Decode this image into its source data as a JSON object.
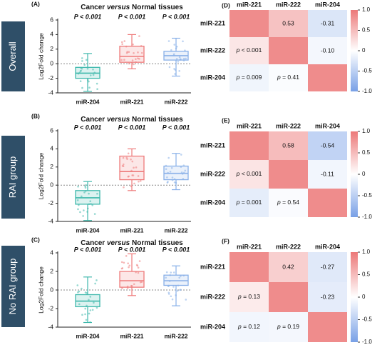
{
  "figure": {
    "colors": {
      "teal": "#3FB8AC",
      "red": "#EE7B7B",
      "blue": "#89B0E8",
      "label_bg": "#2F4F68",
      "grid": "#999999"
    },
    "row_labels": [
      "Overall",
      "RAI group",
      "No RAI group"
    ],
    "box_title_pre": "Cancer ",
    "box_title_it": "versus",
    "box_title_post": " Normal tissues",
    "ylabel": "Log2Fold change",
    "cbar_ticks": [
      "1.0",
      "0.5",
      "0",
      "-0.5",
      "-1.0"
    ]
  },
  "chart_data": [
    {
      "type": "box",
      "panel": "A",
      "title": "Cancer versus Normal tissues",
      "ylabel": "Log2Fold change",
      "ylim": [
        -4,
        6
      ],
      "yticks": [
        -4,
        -2,
        0,
        2,
        4,
        6
      ],
      "categories": [
        "miR-204",
        "miR-221",
        "miR-222"
      ],
      "colors": [
        "#3FB8AC",
        "#EE7B7B",
        "#89B0E8"
      ],
      "pvalues": [
        "P < 0.001",
        "P < 0.001",
        "P < 0.001"
      ],
      "boxes": [
        {
          "min": -3.8,
          "q1": -2.0,
          "median": -1.3,
          "q3": -0.5,
          "max": 1.4
        },
        {
          "min": -0.7,
          "q1": 0.2,
          "median": 1.0,
          "q3": 2.4,
          "max": 4.0
        },
        {
          "min": -1.7,
          "q1": 0.5,
          "median": 1.1,
          "q3": 1.7,
          "max": 3.5
        }
      ]
    },
    {
      "type": "box",
      "panel": "B",
      "title": "Cancer versus Normal tissues",
      "ylabel": "Log2Fold change",
      "ylim": [
        -4,
        6
      ],
      "yticks": [
        -4,
        -2,
        0,
        2,
        4,
        6
      ],
      "categories": [
        "miR-204",
        "miR-221",
        "miR-222"
      ],
      "colors": [
        "#3FB8AC",
        "#EE7B7B",
        "#89B0E8"
      ],
      "pvalues": [
        "P < 0.001",
        "P < 0.001",
        "P < 0.001"
      ],
      "boxes": [
        {
          "min": -3.9,
          "q1": -2.1,
          "median": -1.4,
          "q3": -0.6,
          "max": 0.4
        },
        {
          "min": -0.6,
          "q1": 0.6,
          "median": 1.5,
          "q3": 3.2,
          "max": 4.0
        },
        {
          "min": -0.5,
          "q1": 0.6,
          "median": 1.3,
          "q3": 2.1,
          "max": 3.5
        }
      ]
    },
    {
      "type": "box",
      "panel": "C",
      "title": "Cancer versus Normal tissues",
      "ylabel": "Log2Fold change",
      "ylim": [
        -4,
        4
      ],
      "yticks": [
        -4,
        -2,
        0,
        2,
        4
      ],
      "categories": [
        "miR-204",
        "miR-221",
        "miR-222"
      ],
      "colors": [
        "#3FB8AC",
        "#EE7B7B",
        "#89B0E8"
      ],
      "pvalues": [
        "P < 0.001",
        "P < 0.001",
        "P < 0.001"
      ],
      "boxes": [
        {
          "min": -3.5,
          "q1": -1.8,
          "median": -1.2,
          "q3": -0.5,
          "max": 1.4
        },
        {
          "min": -0.6,
          "q1": 0.3,
          "median": 1.0,
          "q3": 2.0,
          "max": 3.9
        },
        {
          "min": -1.7,
          "q1": 0.5,
          "median": 1.0,
          "q3": 1.6,
          "max": 2.6
        }
      ]
    },
    {
      "type": "heatmap",
      "panel": "D",
      "labels": [
        "miR-221",
        "miR-222",
        "miR-204"
      ],
      "values": [
        [
          1,
          0.53,
          -0.31
        ],
        [
          0.53,
          1,
          -0.1
        ],
        [
          -0.31,
          -0.1,
          1
        ]
      ],
      "upper": [
        [
          null,
          "0.53",
          "-0.31"
        ],
        [
          null,
          null,
          "-0.10"
        ],
        [
          null,
          null,
          null
        ]
      ],
      "lower": [
        [
          null,
          null,
          null
        ],
        [
          "p < 0.001",
          null,
          null
        ],
        [
          "p = 0.009",
          "p = 0.41",
          null
        ]
      ],
      "colorbar": [
        -1,
        1
      ]
    },
    {
      "type": "heatmap",
      "panel": "E",
      "labels": [
        "miR-221",
        "miR-222",
        "miR-204"
      ],
      "values": [
        [
          1,
          0.58,
          -0.54
        ],
        [
          0.58,
          1,
          -0.11
        ],
        [
          -0.54,
          -0.11,
          1
        ]
      ],
      "upper": [
        [
          null,
          "0.58",
          "-0.54"
        ],
        [
          null,
          null,
          "-0.11"
        ],
        [
          null,
          null,
          null
        ]
      ],
      "lower": [
        [
          null,
          null,
          null
        ],
        [
          "p < 0.001",
          null,
          null
        ],
        [
          "p = 0.001",
          "p = 0.54",
          null
        ]
      ],
      "colorbar": [
        -1,
        1
      ]
    },
    {
      "type": "heatmap",
      "panel": "F",
      "labels": [
        "miR-221",
        "miR-222",
        "miR-204"
      ],
      "values": [
        [
          1,
          0.42,
          -0.27
        ],
        [
          0.42,
          1,
          -0.23
        ],
        [
          -0.27,
          -0.23,
          1
        ]
      ],
      "upper": [
        [
          null,
          "0.42",
          "-0.27"
        ],
        [
          null,
          null,
          "-0.23"
        ],
        [
          null,
          null,
          null
        ]
      ],
      "lower": [
        [
          null,
          null,
          null
        ],
        [
          "p = 0.13",
          null,
          null
        ],
        [
          "p = 0.12",
          "p = 0.19",
          null
        ]
      ],
      "colorbar": [
        -1,
        1
      ]
    }
  ]
}
